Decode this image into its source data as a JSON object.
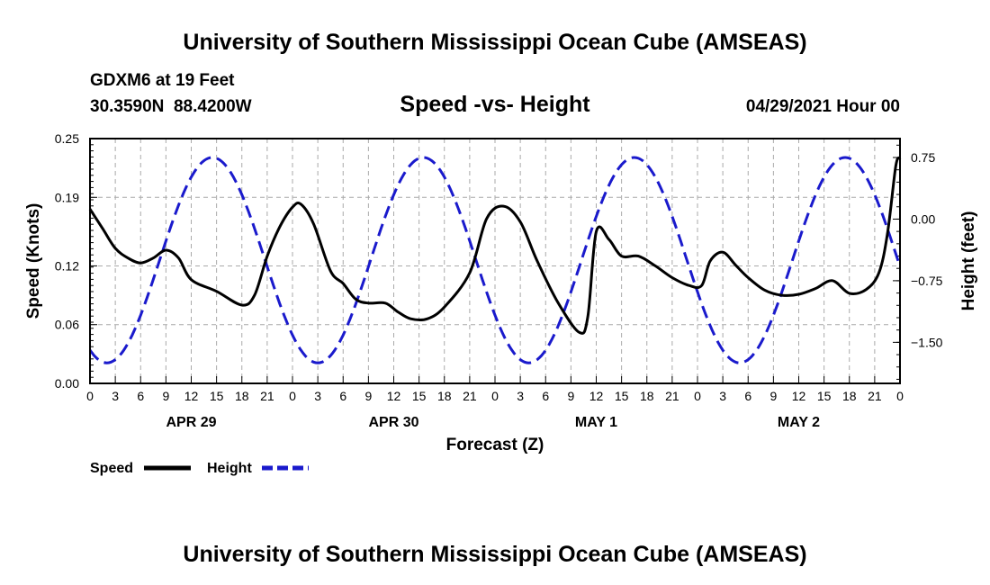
{
  "chart_data": {
    "type": "line",
    "title": "University of Southern Mississippi Ocean Cube (AMSEAS)",
    "footer_title": "University of Southern Mississippi Ocean Cube (AMSEAS)",
    "subtitle": "Speed -vs- Height",
    "station": "GDXM6 at 19 Feet",
    "location": "30.3590N  88.4200W",
    "run": "04/29/2021 Hour 00",
    "xlabel": "Forecast (Z)",
    "ylabel_left": "Speed (Knots)",
    "ylabel_right": "Height (feet)",
    "ylim_left": [
      0,
      0.25
    ],
    "ylim_right": [
      -2.0,
      0.98
    ],
    "xlim": [
      0,
      96
    ],
    "left_ticks": [
      0.0,
      0.06,
      0.12,
      0.19,
      0.25
    ],
    "left_tick_labels": [
      "0.00",
      "0.06",
      "0.12",
      "0.19",
      "0.25"
    ],
    "right_ticks": [
      -1.5,
      -0.75,
      0.0,
      0.75
    ],
    "right_tick_labels": [
      "−1.50",
      "−0.75",
      "0.00",
      "0.75"
    ],
    "x_ticks": [
      0,
      3,
      6,
      9,
      12,
      15,
      18,
      21,
      24,
      27,
      30,
      33,
      36,
      39,
      42,
      45,
      48,
      51,
      54,
      57,
      60,
      63,
      66,
      69,
      72,
      75,
      78,
      81,
      84,
      87,
      90,
      93,
      96
    ],
    "x_tick_labels": [
      "0",
      "3",
      "6",
      "9",
      "12",
      "15",
      "18",
      "21",
      "0",
      "3",
      "6",
      "9",
      "12",
      "15",
      "18",
      "21",
      "0",
      "3",
      "6",
      "9",
      "12",
      "15",
      "18",
      "21",
      "0",
      "3",
      "6",
      "9",
      "12",
      "15",
      "18",
      "21",
      "0"
    ],
    "date_labels": [
      {
        "label": "APR 29",
        "hour": 12
      },
      {
        "label": "APR 30",
        "hour": 36
      },
      {
        "label": "MAY 1",
        "hour": 60
      },
      {
        "label": "MAY 2",
        "hour": 84
      }
    ],
    "series": [
      {
        "name": "Speed",
        "axis": "left",
        "color": "#000000",
        "dash": "solid",
        "x": [
          0,
          1.5,
          3,
          4.5,
          6,
          7.5,
          9,
          10.5,
          12,
          15,
          18,
          19.5,
          21,
          22.5,
          24,
          25,
          26.5,
          28.5,
          30,
          31.5,
          33,
          35,
          36.5,
          38,
          40,
          42,
          45,
          47,
          49,
          51,
          53,
          55.5,
          58,
          59,
          60,
          61.5,
          63,
          65,
          67,
          69,
          71,
          72.5,
          73.5,
          75,
          76.5,
          78,
          80,
          82,
          84,
          86,
          88,
          90,
          92,
          93.5,
          94.5,
          95.5,
          96
        ],
        "y": [
          0.178,
          0.158,
          0.138,
          0.128,
          0.123,
          0.128,
          0.136,
          0.128,
          0.106,
          0.094,
          0.08,
          0.09,
          0.13,
          0.16,
          0.18,
          0.183,
          0.163,
          0.115,
          0.102,
          0.086,
          0.082,
          0.082,
          0.073,
          0.066,
          0.066,
          0.078,
          0.113,
          0.168,
          0.181,
          0.165,
          0.125,
          0.082,
          0.052,
          0.068,
          0.155,
          0.147,
          0.13,
          0.13,
          0.12,
          0.108,
          0.1,
          0.1,
          0.125,
          0.134,
          0.121,
          0.108,
          0.095,
          0.09,
          0.091,
          0.097,
          0.105,
          0.092,
          0.096,
          0.113,
          0.152,
          0.222,
          0.23
        ]
      },
      {
        "name": "Height",
        "axis": "right",
        "color": "#1a1acc",
        "dash": "dashed",
        "mean": -0.5,
        "amplitude": 1.25,
        "period_hours": 25,
        "peak_hour": 14.5,
        "hours": [
          0,
          0.5,
          1,
          1.5,
          2,
          2.5,
          3,
          3.5,
          4,
          4.5,
          5,
          5.5,
          6,
          6.5,
          7,
          7.5,
          8,
          8.5,
          9,
          9.5,
          10,
          10.5,
          11,
          11.5,
          12,
          12.5,
          13,
          13.5,
          14,
          14.5,
          15,
          15.5,
          16,
          16.5,
          17,
          17.5,
          18,
          18.5,
          19,
          19.5,
          20,
          20.5,
          21,
          21.5,
          22,
          22.5,
          23,
          23.5,
          24,
          24.5,
          25,
          25.5,
          26,
          26.5,
          27,
          27.5,
          28,
          28.5,
          29,
          29.5,
          30,
          30.5,
          31,
          31.5,
          32,
          32.5,
          33,
          33.5,
          34,
          34.5,
          35,
          35.5,
          36,
          36.5,
          37,
          37.5,
          38,
          38.5,
          39,
          39.5,
          40,
          40.5,
          41,
          41.5,
          42,
          42.5,
          43,
          43.5,
          44,
          44.5,
          45,
          45.5,
          46,
          46.5,
          47,
          47.5,
          48,
          48.5,
          49,
          49.5,
          50,
          50.5,
          51,
          51.5,
          52,
          52.5,
          53,
          53.5,
          54,
          54.5,
          55,
          55.5,
          56,
          56.5,
          57,
          57.5,
          58,
          58.5,
          59,
          59.5,
          60,
          60.5,
          61,
          61.5,
          62,
          62.5,
          63,
          63.5,
          64,
          64.5,
          65,
          65.5,
          66,
          66.5,
          67,
          67.5,
          68,
          68.5,
          69,
          69.5,
          70,
          70.5,
          71,
          71.5,
          72,
          72.5,
          73,
          73.5,
          74,
          74.5,
          75,
          75.5,
          76,
          76.5,
          77,
          77.5,
          78,
          78.5,
          79,
          79.5,
          80,
          80.5,
          81,
          81.5,
          82,
          82.5,
          83,
          83.5,
          84,
          84.5,
          85,
          85.5,
          86,
          86.5,
          87,
          87.5,
          88,
          88.5,
          89,
          89.5,
          90,
          90.5,
          91,
          91.5,
          92,
          92.5,
          93,
          93.5,
          94,
          94.5,
          95,
          95.5,
          96
        ]
      }
    ],
    "legend": [
      {
        "label": "Speed",
        "color": "#000000",
        "dash": "solid"
      },
      {
        "label": "Height",
        "color": "#1a1acc",
        "dash": "dashed"
      }
    ]
  }
}
